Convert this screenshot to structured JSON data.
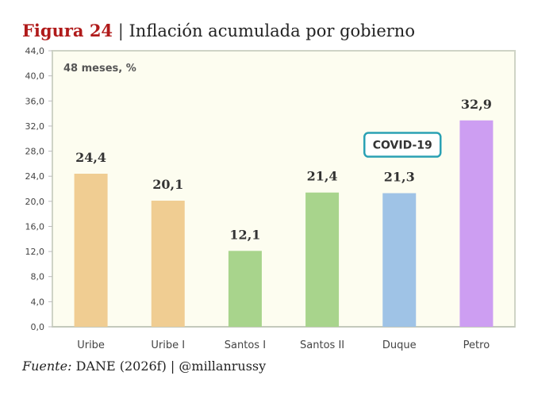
{
  "header": {
    "figure_label": "Figura 24",
    "separator": "|",
    "title": "Inflación acumulada por gobierno"
  },
  "source": {
    "label": "Fuente:",
    "text": "DANE (2026f) | @millanrussy"
  },
  "colors": {
    "figure_label": "#b01a1a",
    "plot_background": "#fdfdf0",
    "plot_border": "#cfd4c6",
    "annotation_border": "#2aa1b4"
  },
  "chart_data": {
    "type": "bar",
    "subtitle": "48 meses, %",
    "categories": [
      "Uribe",
      "Uribe I",
      "Santos I",
      "Santos II",
      "Duque",
      "Petro"
    ],
    "values": [
      24.4,
      20.1,
      12.1,
      21.4,
      21.3,
      32.9
    ],
    "value_labels": [
      "24,4",
      "20,1",
      "12,1",
      "21,4",
      "21,3",
      "32,9"
    ],
    "bar_colors": [
      "#f0cd92",
      "#f0cd92",
      "#a8d48c",
      "#a8d48c",
      "#9fc3e6",
      "#cd9ef2"
    ],
    "ylim": [
      0,
      44
    ],
    "yticks": [
      0,
      4,
      8,
      12,
      16,
      20,
      24,
      28,
      32,
      36,
      40,
      44
    ],
    "ytick_labels": [
      "0,0",
      "4,0",
      "8,0",
      "12,0",
      "16,0",
      "20,0",
      "24,0",
      "28,0",
      "32,0",
      "36,0",
      "40,0",
      "44,0"
    ],
    "grid": false,
    "annotation": {
      "text": "COVID-19",
      "category": "Duque"
    }
  }
}
